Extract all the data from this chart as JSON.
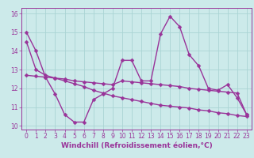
{
  "xlabel": "Windchill (Refroidissement éolien,°C)",
  "xlim": [
    -0.5,
    23.5
  ],
  "ylim": [
    9.8,
    16.3
  ],
  "yticks": [
    10,
    11,
    12,
    13,
    14,
    15,
    16
  ],
  "xticks": [
    0,
    1,
    2,
    3,
    4,
    5,
    6,
    7,
    8,
    9,
    10,
    11,
    12,
    13,
    14,
    15,
    16,
    17,
    18,
    19,
    20,
    21,
    22,
    23
  ],
  "background_color": "#cceaea",
  "grid_color": "#aad4d4",
  "line_color": "#993399",
  "line1_y": [
    15.0,
    14.0,
    12.6,
    11.7,
    10.6,
    10.2,
    10.2,
    11.4,
    11.7,
    12.0,
    13.5,
    13.5,
    12.4,
    12.4,
    14.9,
    15.85,
    15.3,
    13.8,
    13.2,
    12.0,
    11.9,
    12.2,
    11.5,
    10.6
  ],
  "line2_y": [
    12.7,
    12.65,
    12.6,
    12.55,
    12.5,
    12.4,
    12.35,
    12.3,
    12.25,
    12.2,
    12.4,
    12.35,
    12.3,
    12.25,
    12.2,
    12.15,
    12.1,
    12.0,
    11.95,
    11.9,
    11.85,
    11.8,
    11.75,
    10.6
  ],
  "line3_y": [
    14.5,
    13.0,
    12.7,
    12.55,
    12.4,
    12.25,
    12.1,
    11.9,
    11.75,
    11.6,
    11.5,
    11.4,
    11.3,
    11.2,
    11.1,
    11.05,
    11.0,
    10.95,
    10.85,
    10.8,
    10.7,
    10.65,
    10.55,
    10.5
  ],
  "markersize": 2.5,
  "linewidth": 1.0,
  "tick_fontsize": 5.5,
  "label_fontsize": 6.5
}
